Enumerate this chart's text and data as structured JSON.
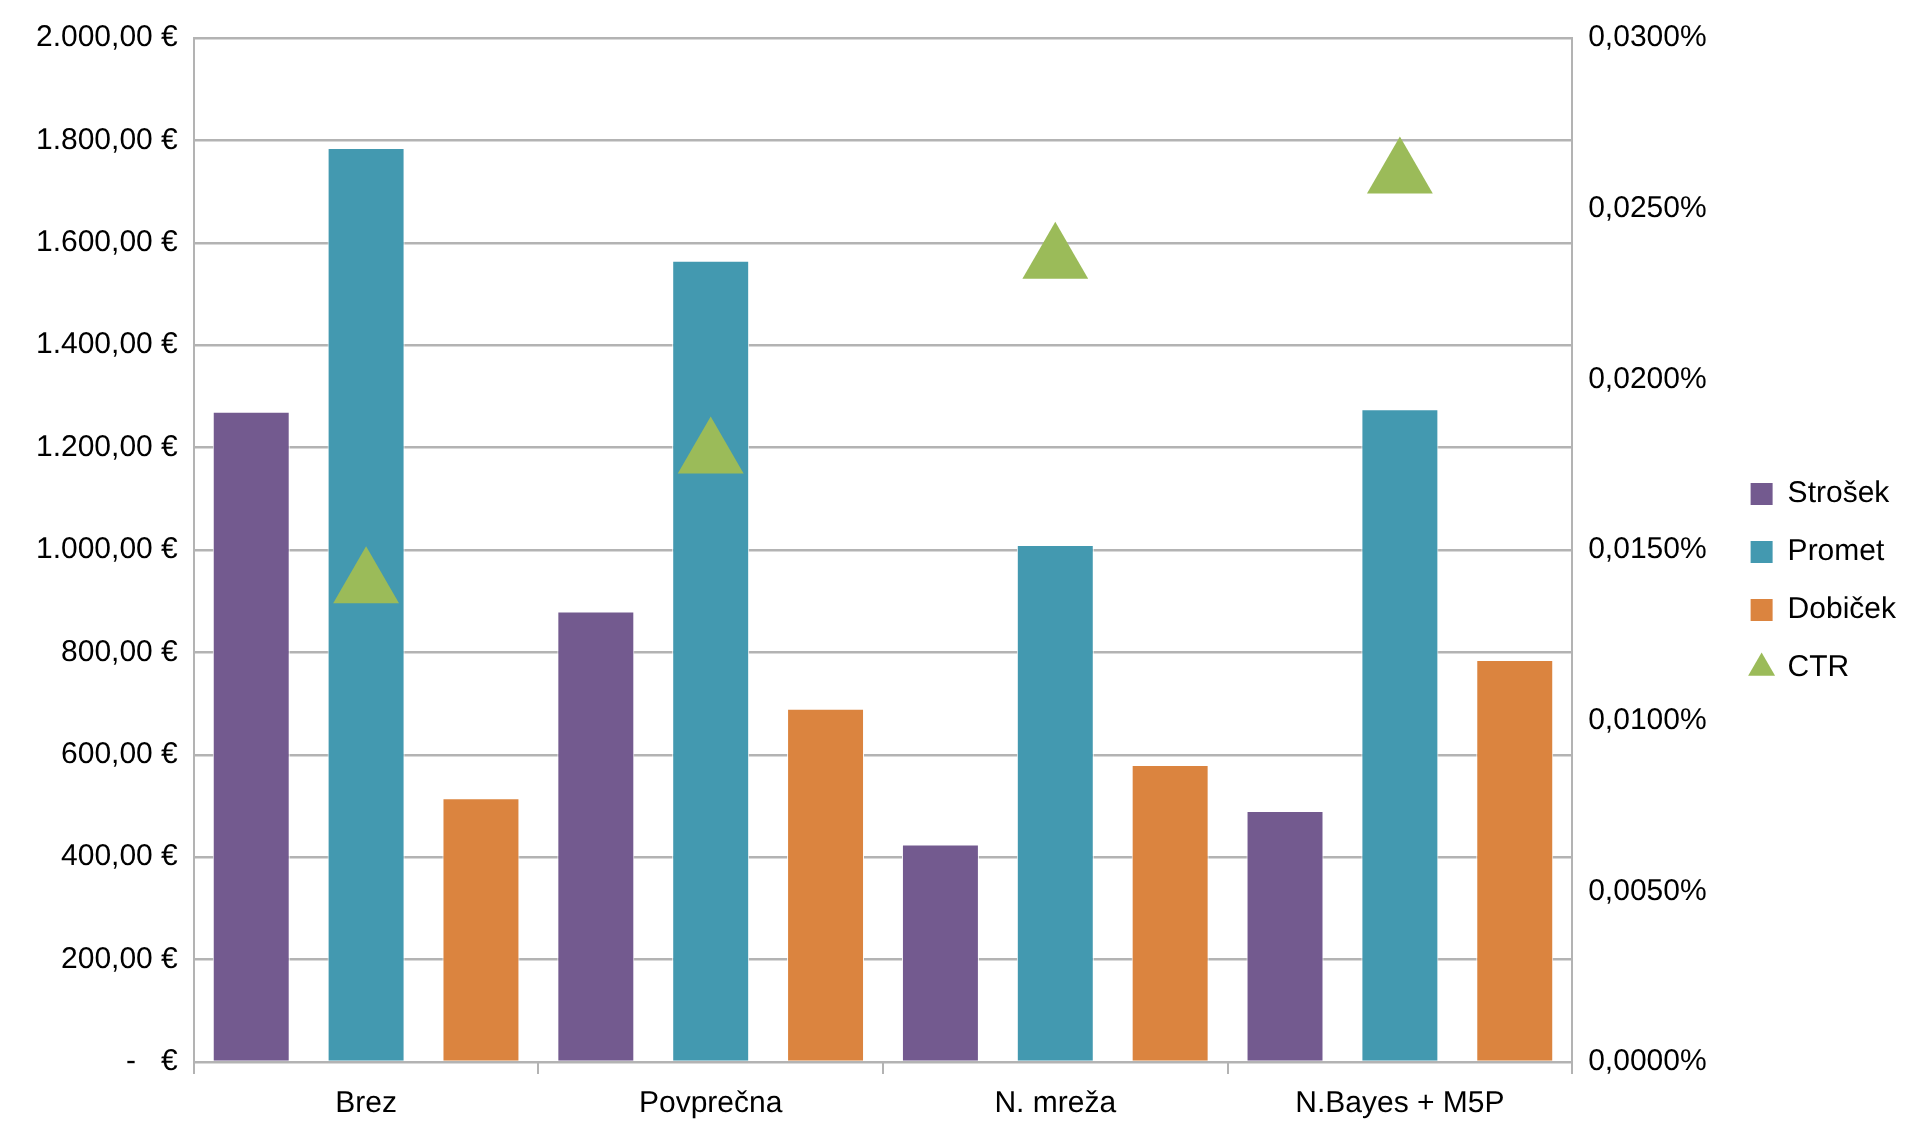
{
  "chart_data": {
    "type": "bar",
    "categories": [
      "Brez",
      "Povprečna",
      "N. mreža",
      "N.Bayes + M5P"
    ],
    "series": [
      {
        "name": "Strošek",
        "color": "#735a8f",
        "values": [
          1270,
          880,
          425,
          490
        ]
      },
      {
        "name": "Promet",
        "color": "#4399b0",
        "values": [
          1785,
          1565,
          1010,
          1275
        ]
      },
      {
        "name": "Dobiček",
        "color": "#db843f",
        "values": [
          515,
          690,
          580,
          785
        ]
      },
      {
        "name": "CTR",
        "type": "scatter",
        "axis": "y2",
        "marker": "triangle",
        "color": "#9bbb59",
        "values": [
          0.014,
          0.0178,
          0.0235,
          0.026
        ]
      }
    ],
    "ylim": [
      0,
      2000
    ],
    "yticks": [
      {
        "value": 0,
        "label": "-   €"
      },
      {
        "value": 200,
        "label": "200,00 €"
      },
      {
        "value": 400,
        "label": "400,00 €"
      },
      {
        "value": 600,
        "label": "600,00 €"
      },
      {
        "value": 800,
        "label": "800,00 €"
      },
      {
        "value": 1000,
        "label": "1.000,00 €"
      },
      {
        "value": 1200,
        "label": "1.200,00 €"
      },
      {
        "value": 1400,
        "label": "1.400,00 €"
      },
      {
        "value": 1600,
        "label": "1.600,00 €"
      },
      {
        "value": 1800,
        "label": "1.800,00 €"
      },
      {
        "value": 2000,
        "label": "2.000,00 €"
      }
    ],
    "y2lim": [
      0,
      0.03
    ],
    "y2ticks": [
      {
        "value": 0,
        "label": "0,0000%"
      },
      {
        "value": 0.005,
        "label": "0,0050%"
      },
      {
        "value": 0.01,
        "label": "0,0100%"
      },
      {
        "value": 0.015,
        "label": "0,0150%"
      },
      {
        "value": 0.02,
        "label": "0,0200%"
      },
      {
        "value": 0.025,
        "label": "0,0250%"
      },
      {
        "value": 0.03,
        "label": "0,0300%"
      }
    ],
    "grid": "y",
    "legend": "right"
  }
}
